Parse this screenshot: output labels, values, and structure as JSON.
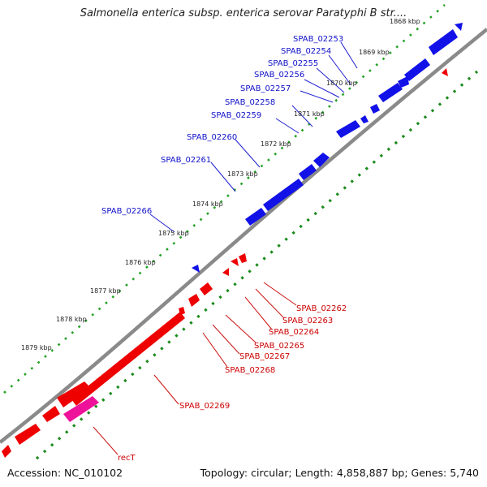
{
  "title": "Salmonella enterica subsp. enterica serovar Paratyphi B str....",
  "accession": "Accession: NC_010102",
  "topology": "Topology: circular; Length: 4,858,887 bp; Genes: 5,740",
  "kbp_labels": [
    "1868 kbp",
    "1869 kbp",
    "1870 kbp",
    "1871 kbp",
    "1872 kbp",
    "1873 kbp",
    "1874 kbp",
    "1875 kbp",
    "1876 kbp",
    "1877 kbp",
    "1878 kbp",
    "1879 kbp"
  ],
  "forward_genes": [
    "SPAB_02253",
    "SPAB_02254",
    "SPAB_02255",
    "SPAB_02256",
    "SPAB_02257",
    "SPAB_02258",
    "SPAB_02259",
    "SPAB_02260",
    "SPAB_02261",
    "SPAB_02266"
  ],
  "reverse_genes": [
    "SPAB_02262",
    "SPAB_02263",
    "SPAB_02264",
    "SPAB_02265",
    "SPAB_02267",
    "SPAB_02268",
    "SPAB_02269",
    "recT"
  ],
  "colors": {
    "forward": "#1010e0",
    "reverse": "#ee0000",
    "recT": "#ee1199",
    "backbone": "#888888",
    "gc_outer": "#22a022",
    "gc_inner": "#1a8a1a"
  }
}
